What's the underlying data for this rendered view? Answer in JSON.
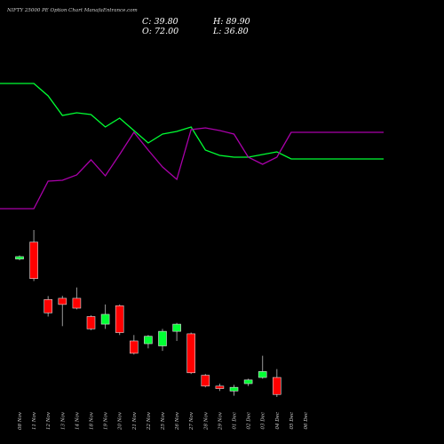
{
  "chart_data": {
    "type": "candlestick",
    "title": "NIFTY 25000  PE Option  Chart ManafaEntrance.com",
    "ohlc_text": {
      "close_label": "C: 39.80",
      "high_label": "H: 89.90",
      "open_label": "O: 72.00",
      "low_label": "L: 36.80"
    },
    "dates": [
      "08 Nov",
      "11 Nov",
      "12 Nov",
      "13 Nov",
      "14 Nov",
      "18 Nov",
      "19 Nov",
      "20 Nov",
      "21 Nov",
      "22 Nov",
      "25 Nov",
      "26 Nov",
      "27 Nov",
      "28 Nov",
      "29 Nov",
      "01 Dec",
      "02 Dec",
      "03 Dec",
      "04 Dec",
      "05 Dec",
      "06 Dec"
    ],
    "candles": [
      {
        "date": "08 Nov",
        "open": 87.6,
        "close": 88.6,
        "high": 89.1,
        "low": 87.1
      },
      {
        "date": "11 Nov",
        "open": 94.5,
        "close": 79.7,
        "high": 99.4,
        "low": 78.7
      },
      {
        "date": "12 Nov",
        "open": 71.2,
        "close": 65.8,
        "high": 72.6,
        "low": 64.3
      },
      {
        "date": "13 Nov",
        "open": 71.7,
        "close": 69.2,
        "high": 72.7,
        "low": 60.4
      },
      {
        "date": "14 Nov",
        "open": 71.7,
        "close": 67.7,
        "high": 76.1,
        "low": 67.2
      },
      {
        "date": "18 Nov",
        "open": 64.3,
        "close": 59.3,
        "high": 64.8,
        "low": 58.8
      },
      {
        "date": "19 Nov",
        "open": 61.2,
        "close": 65.2,
        "high": 69.2,
        "low": 59.3
      },
      {
        "date": "20 Nov",
        "open": 68.7,
        "close": 57.8,
        "high": 69.2,
        "low": 56.8
      },
      {
        "date": "21 Nov",
        "open": 54.4,
        "close": 49.4,
        "high": 56.8,
        "low": 48.9
      },
      {
        "date": "22 Nov",
        "open": 53.3,
        "close": 56.3,
        "high": 56.8,
        "low": 51.4
      },
      {
        "date": "25 Nov",
        "open": 52.4,
        "close": 58.3,
        "high": 59.3,
        "low": 50.4
      },
      {
        "date": "26 Nov",
        "open": 58.3,
        "close": 61.2,
        "high": 61.7,
        "low": 54.4
      },
      {
        "date": "27 Nov",
        "open": 57.3,
        "close": 41.5,
        "high": 57.8,
        "low": 41.0
      },
      {
        "date": "28 Nov",
        "open": 40.5,
        "close": 36.1,
        "high": 41.0,
        "low": 35.6
      },
      {
        "date": "29 Nov",
        "open": 36.1,
        "close": 35.1,
        "high": 37.1,
        "low": 34.1
      },
      {
        "date": "01 Dec",
        "open": 34.1,
        "close": 35.6,
        "high": 36.6,
        "low": 32.2
      },
      {
        "date": "02 Dec",
        "open": 37.1,
        "close": 38.6,
        "high": 39.1,
        "low": 36.1
      },
      {
        "date": "03 Dec",
        "open": 39.6,
        "close": 42.0,
        "high": 48.4,
        "low": 39.1
      },
      {
        "date": "04 Dec",
        "open": 39.6,
        "close": 32.7,
        "high": 43.0,
        "low": 31.7
      }
    ],
    "lines": [
      {
        "color": "#00ff33",
        "x": [
          0,
          1,
          2,
          3,
          4,
          5,
          6,
          7,
          8,
          9,
          10,
          11,
          12,
          13,
          14,
          15,
          16,
          17,
          18,
          19,
          20
        ],
        "y": [
          94,
          94,
          108,
          130,
          127,
          129,
          143,
          133,
          147,
          161,
          151,
          148,
          143,
          169,
          175,
          177,
          177,
          174,
          171,
          179,
          179
        ]
      },
      {
        "color": "#aa00aa",
        "x": [
          0,
          1,
          2,
          3,
          4,
          5,
          6,
          7,
          8,
          9,
          10,
          11,
          12,
          13,
          14,
          15,
          16,
          17,
          18,
          19,
          20
        ],
        "y": [
          235,
          235,
          204,
          203,
          197,
          180,
          198,
          174,
          149,
          169,
          188,
          202,
          146,
          144,
          147,
          151,
          177,
          185,
          177,
          149,
          149
        ]
      }
    ]
  }
}
